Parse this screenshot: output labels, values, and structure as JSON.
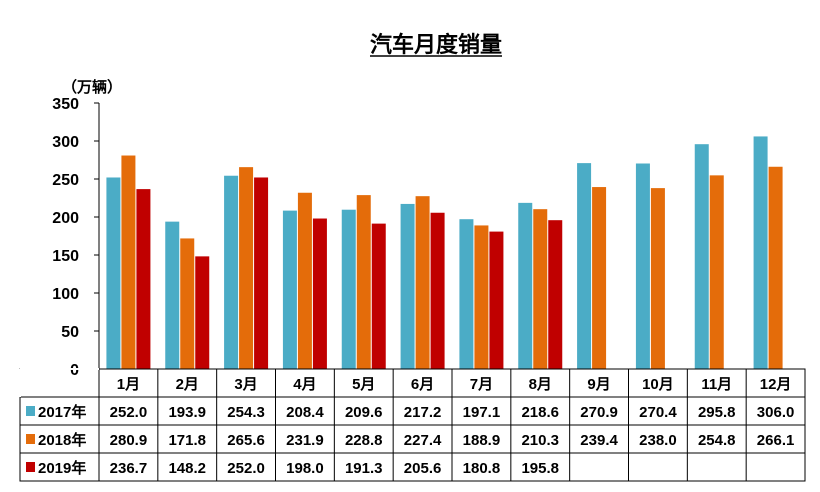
{
  "chart_data": {
    "type": "bar",
    "title": "汽车月度销量",
    "ylabel": "（万辆）",
    "ylim": [
      0,
      350
    ],
    "yticks": [
      0,
      50,
      100,
      150,
      200,
      250,
      300,
      350
    ],
    "ytick_labels": [
      "0",
      "50",
      "100",
      "150",
      "200",
      "250",
      "300",
      "350"
    ],
    "categories": [
      "1月",
      "2月",
      "3月",
      "4月",
      "5月",
      "6月",
      "7月",
      "8月",
      "9月",
      "10月",
      "11月",
      "12月"
    ],
    "grid": false,
    "legend": "data-table",
    "series": [
      {
        "name": "2017年",
        "color": "#4bacc6",
        "values": [
          252.0,
          193.9,
          254.3,
          208.4,
          209.6,
          217.2,
          197.1,
          218.6,
          270.9,
          270.4,
          295.8,
          306.0
        ],
        "labels": [
          "252.0",
          "193.9",
          "254.3",
          "208.4",
          "209.6",
          "217.2",
          "197.1",
          "218.6",
          "270.9",
          "270.4",
          "295.8",
          "306.0"
        ]
      },
      {
        "name": "2018年",
        "color": "#e46c0a",
        "values": [
          280.9,
          171.8,
          265.6,
          231.9,
          228.8,
          227.4,
          188.9,
          210.3,
          239.4,
          238.0,
          254.8,
          266.1
        ],
        "labels": [
          "280.9",
          "171.8",
          "265.6",
          "231.9",
          "228.8",
          "227.4",
          "188.9",
          "210.3",
          "239.4",
          "238.0",
          "254.8",
          "266.1"
        ]
      },
      {
        "name": "2019年",
        "color": "#c00000",
        "values": [
          236.7,
          148.2,
          252.0,
          198.0,
          191.3,
          205.6,
          180.8,
          195.8,
          null,
          null,
          null,
          null
        ],
        "labels": [
          "236.7",
          "148.2",
          "252.0",
          "198.0",
          "191.3",
          "205.6",
          "180.8",
          "195.8",
          "",
          "",
          "",
          ""
        ]
      }
    ]
  }
}
